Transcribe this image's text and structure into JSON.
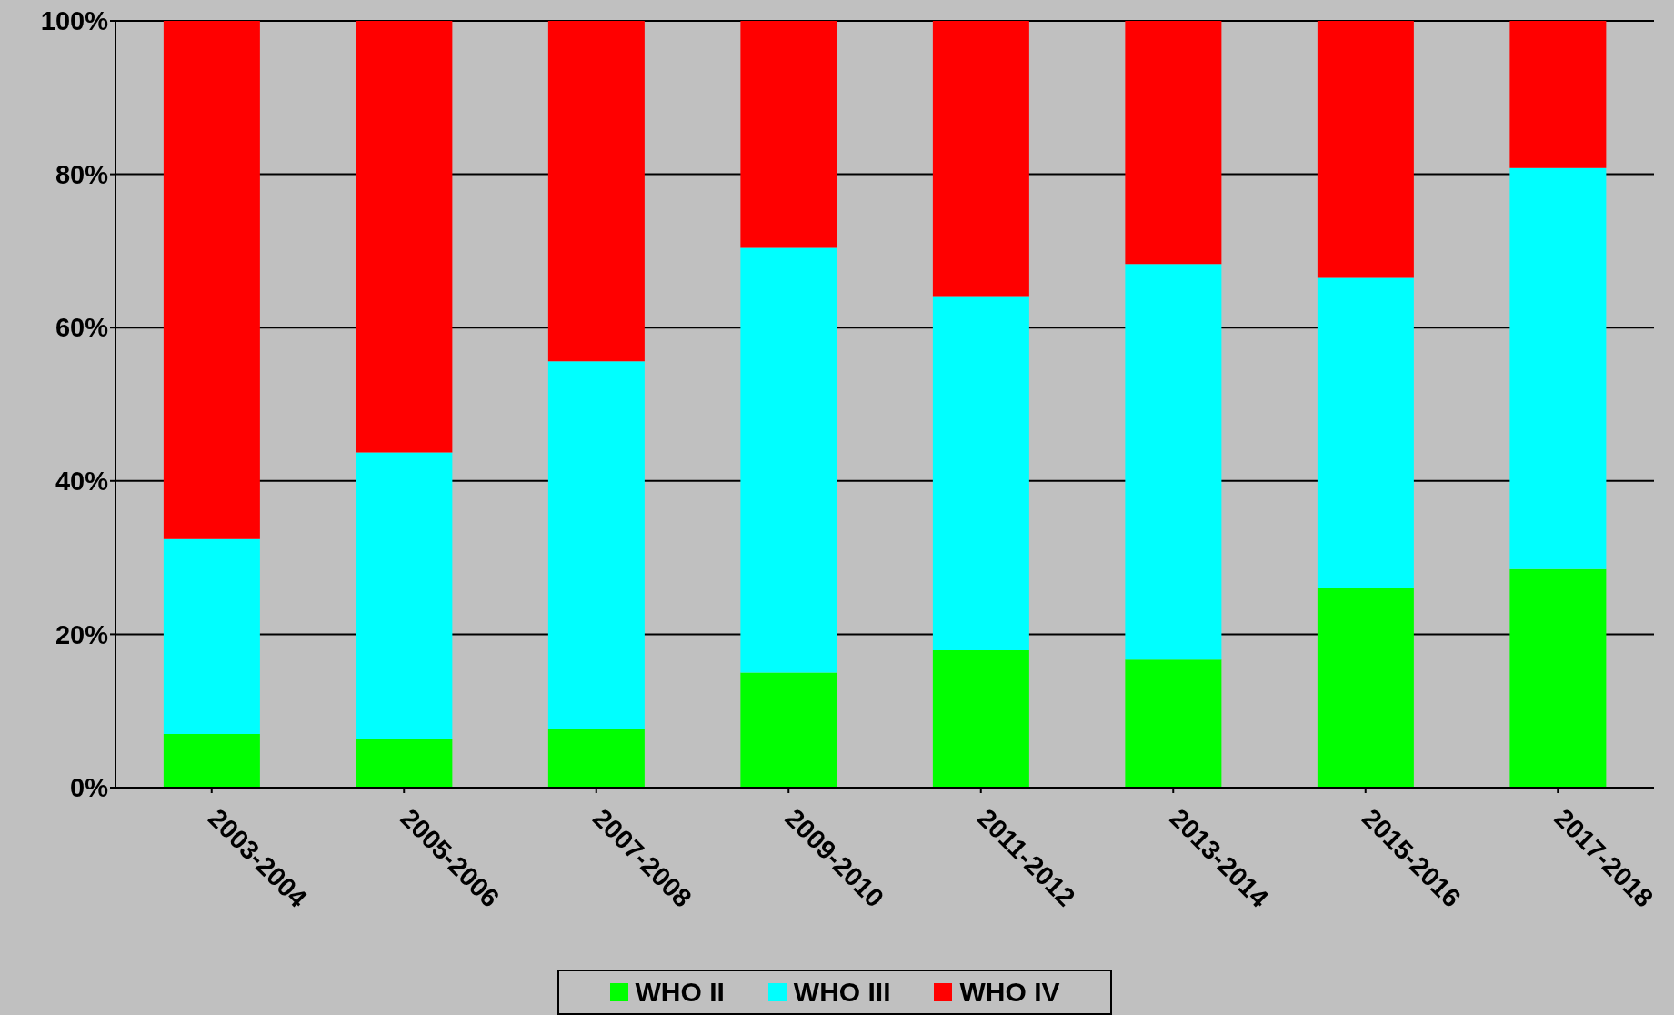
{
  "chart_data": {
    "type": "bar",
    "stacked": true,
    "categories": [
      "2003-2004",
      "2005-2006",
      "2007-2008",
      "2009-2010",
      "2011-2012",
      "2013-2014",
      "2015-2016",
      "2017-2018"
    ],
    "series": [
      {
        "name": "WHO II",
        "color": "#00ff00",
        "values": [
          7.0,
          6.3,
          7.6,
          15.0,
          17.9,
          16.7,
          26.0,
          28.5
        ]
      },
      {
        "name": "WHO III",
        "color": "#00ffff",
        "values": [
          25.4,
          37.4,
          48.0,
          55.4,
          46.1,
          51.6,
          40.5,
          52.3
        ]
      },
      {
        "name": "WHO IV",
        "color": "#ff0000",
        "values": [
          67.6,
          56.3,
          44.4,
          29.6,
          36.0,
          31.7,
          33.5,
          19.2
        ]
      }
    ],
    "ylim": [
      0,
      100
    ],
    "yticks": [
      {
        "value": 0,
        "label": "0%"
      },
      {
        "value": 20,
        "label": "20%"
      },
      {
        "value": 40,
        "label": "40%"
      },
      {
        "value": 60,
        "label": "60%"
      },
      {
        "value": 80,
        "label": "80%"
      },
      {
        "value": 100,
        "label": "100%"
      }
    ],
    "grid": "y",
    "legend": "bottom"
  }
}
